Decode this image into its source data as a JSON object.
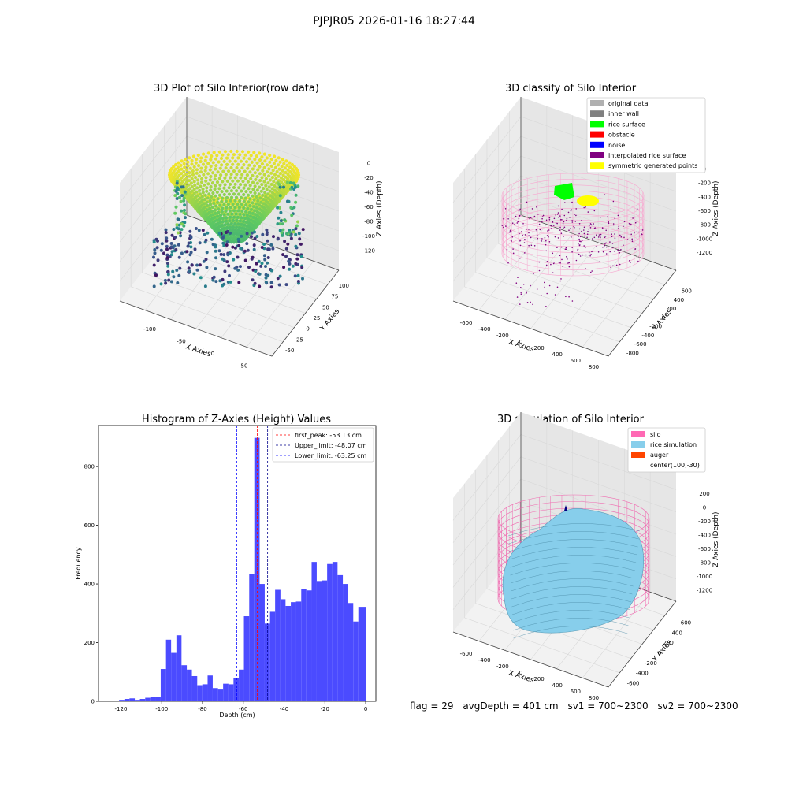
{
  "figure": {
    "title": "PJPJR05 2026-01-16 18:27:44"
  },
  "chart_data": [
    {
      "type": "scatter",
      "title": "3D Plot of Silo Interior(row data)",
      "xlabel": "X Axies",
      "ylabel": "Y Axies",
      "zlabel": "Z Axies (Depth)",
      "x_ticks": [
        "-100",
        "-50",
        "0",
        "50"
      ],
      "y_ticks": [
        "-50",
        "-25",
        "0",
        "25",
        "50",
        "75",
        "100"
      ],
      "z_ticks": [
        "0",
        "-20",
        "-40",
        "-60",
        "-80",
        "-100",
        "-120"
      ],
      "colormap": "viridis"
    },
    {
      "type": "scatter",
      "title": "3D classify of Silo Interior",
      "xlabel": "X Axies",
      "ylabel": "Y Axies",
      "zlabel": "Z Axies (Depth)",
      "x_ticks": [
        "-600",
        "-400",
        "-200",
        "0",
        "200",
        "400",
        "600",
        "800"
      ],
      "y_ticks": [
        "-800",
        "-600",
        "-400",
        "-200",
        "0",
        "200",
        "400",
        "600"
      ],
      "z_ticks": [
        "0",
        "-200",
        "-400",
        "-600",
        "-800",
        "-1000",
        "-1200"
      ],
      "legend": [
        {
          "label": "original data",
          "color": "#b0b0b0"
        },
        {
          "label": "inner wall",
          "color": "#808080"
        },
        {
          "label": "rice surface",
          "color": "#00ff00"
        },
        {
          "label": "obstacle",
          "color": "#ff0000"
        },
        {
          "label": "noise",
          "color": "#0000ff"
        },
        {
          "label": "interpolated rice surface",
          "color": "#800080"
        },
        {
          "label": "symmetric generated points",
          "color": "#ffff00"
        }
      ]
    },
    {
      "type": "bar",
      "title": "Histogram of Z-Axies (Height) Values",
      "xlabel": "Depth (cm)",
      "ylabel": "Frequency",
      "xlim": [
        -131,
        5
      ],
      "ylim": [
        0,
        940
      ],
      "x_ticks": [
        -120,
        -100,
        -80,
        -60,
        -40,
        -20,
        0
      ],
      "y_ticks": [
        0,
        200,
        400,
        600,
        800
      ],
      "color": "#4b4bff",
      "bins": [
        {
          "x0": -126,
          "x1": -123.4,
          "y": 2
        },
        {
          "x0": -123.4,
          "x1": -120.9,
          "y": 2
        },
        {
          "x0": -120.9,
          "x1": -118.3,
          "y": 5
        },
        {
          "x0": -118.3,
          "x1": -115.8,
          "y": 8
        },
        {
          "x0": -115.8,
          "x1": -113.2,
          "y": 10
        },
        {
          "x0": -113.2,
          "x1": -110.7,
          "y": 5
        },
        {
          "x0": -110.7,
          "x1": -108.1,
          "y": 8
        },
        {
          "x0": -108.1,
          "x1": -105.6,
          "y": 12
        },
        {
          "x0": -105.6,
          "x1": -103.0,
          "y": 14
        },
        {
          "x0": -103.0,
          "x1": -100.5,
          "y": 15
        },
        {
          "x0": -100.5,
          "x1": -97.9,
          "y": 110
        },
        {
          "x0": -97.9,
          "x1": -95.4,
          "y": 210
        },
        {
          "x0": -95.4,
          "x1": -92.8,
          "y": 165
        },
        {
          "x0": -92.8,
          "x1": -90.3,
          "y": 225
        },
        {
          "x0": -90.3,
          "x1": -87.7,
          "y": 123
        },
        {
          "x0": -87.7,
          "x1": -85.2,
          "y": 108
        },
        {
          "x0": -85.2,
          "x1": -82.6,
          "y": 86
        },
        {
          "x0": -82.6,
          "x1": -80.1,
          "y": 55
        },
        {
          "x0": -80.1,
          "x1": -77.5,
          "y": 58
        },
        {
          "x0": -77.5,
          "x1": -75.0,
          "y": 88
        },
        {
          "x0": -75.0,
          "x1": -72.4,
          "y": 45
        },
        {
          "x0": -72.4,
          "x1": -69.9,
          "y": 40
        },
        {
          "x0": -69.9,
          "x1": -67.3,
          "y": 60
        },
        {
          "x0": -67.3,
          "x1": -64.8,
          "y": 58
        },
        {
          "x0": -64.8,
          "x1": -62.2,
          "y": 80
        },
        {
          "x0": -62.2,
          "x1": -59.7,
          "y": 108
        },
        {
          "x0": -59.7,
          "x1": -57.1,
          "y": 290
        },
        {
          "x0": -57.1,
          "x1": -54.6,
          "y": 433
        },
        {
          "x0": -54.6,
          "x1": -52.0,
          "y": 898
        },
        {
          "x0": -52.0,
          "x1": -49.5,
          "y": 400
        },
        {
          "x0": -49.5,
          "x1": -46.9,
          "y": 265
        },
        {
          "x0": -46.9,
          "x1": -44.4,
          "y": 305
        },
        {
          "x0": -44.4,
          "x1": -41.8,
          "y": 380
        },
        {
          "x0": -41.8,
          "x1": -39.3,
          "y": 348
        },
        {
          "x0": -39.3,
          "x1": -36.7,
          "y": 325
        },
        {
          "x0": -36.7,
          "x1": -34.2,
          "y": 338
        },
        {
          "x0": -34.2,
          "x1": -31.6,
          "y": 340
        },
        {
          "x0": -31.6,
          "x1": -29.1,
          "y": 383
        },
        {
          "x0": -29.1,
          "x1": -26.5,
          "y": 378
        },
        {
          "x0": -26.5,
          "x1": -24.0,
          "y": 475
        },
        {
          "x0": -24.0,
          "x1": -21.4,
          "y": 410
        },
        {
          "x0": -21.4,
          "x1": -18.9,
          "y": 412
        },
        {
          "x0": -18.9,
          "x1": -16.3,
          "y": 468
        },
        {
          "x0": -16.3,
          "x1": -13.8,
          "y": 475
        },
        {
          "x0": -13.8,
          "x1": -11.2,
          "y": 430
        },
        {
          "x0": -11.2,
          "x1": -8.7,
          "y": 400
        },
        {
          "x0": -8.7,
          "x1": -6.1,
          "y": 335
        },
        {
          "x0": -6.1,
          "x1": -3.6,
          "y": 272
        },
        {
          "x0": -3.6,
          "x1": 0,
          "y": 322
        }
      ],
      "vlines": [
        {
          "label": "first_peak: -53.13 cm",
          "x": -53.13,
          "color": "#ff0000"
        },
        {
          "label": "Upper_limit: -48.07 cm",
          "x": -48.07,
          "color": "#00008b"
        },
        {
          "label": "Lower_limit: -63.25 cm",
          "x": -63.25,
          "color": "#0000ff"
        }
      ]
    },
    {
      "type": "surface",
      "title": "3D simulation of Silo Interior",
      "xlabel": "X Axies",
      "ylabel": "Y Axies",
      "zlabel": "Z Axies (Depth)",
      "x_ticks": [
        "-600",
        "-400",
        "-200",
        "0",
        "200",
        "400",
        "600",
        "800"
      ],
      "y_ticks": [
        "-600",
        "-400",
        "-200",
        "0",
        "200",
        "400",
        "600"
      ],
      "z_ticks": [
        "200",
        "0",
        "-200",
        "-400",
        "-600",
        "-800",
        "-1000",
        "-1200"
      ],
      "legend": [
        {
          "label": "silo",
          "color": "#ff69b4"
        },
        {
          "label": "rice simulation",
          "color": "#87ceeb"
        },
        {
          "label": "auger",
          "color": "#ff4500"
        },
        {
          "label": "center(100,-30)",
          "color": ""
        }
      ]
    }
  ],
  "footer": {
    "flag": "flag = 29",
    "avg_depth": "avgDepth = 401 cm",
    "sv1": "sv1 = 700~2300",
    "sv2": "sv2 = 700~2300"
  }
}
